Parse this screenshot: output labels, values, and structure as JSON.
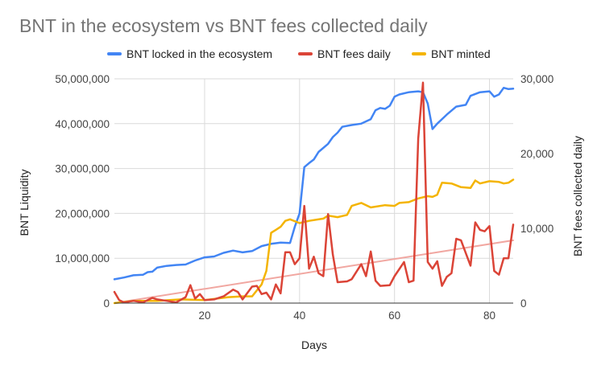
{
  "chart_data": {
    "type": "line",
    "title": "BNT in the ecosystem vs BNT fees collected daily",
    "xlabel": "Days",
    "ylabel": "BNT Liquidity",
    "y2label": "BNT fees collected daily",
    "xlim": [
      1,
      85
    ],
    "ylim": [
      0,
      50000000
    ],
    "y2lim": [
      0,
      30000
    ],
    "x_ticks": [
      20,
      40,
      60,
      80
    ],
    "y_ticks": [
      0,
      10000000,
      20000000,
      30000000,
      40000000,
      50000000
    ],
    "y_tick_labels": [
      "0",
      "10,000,000",
      "20,000,000",
      "30,000,000",
      "40,000,000",
      "50,000,000"
    ],
    "y2_ticks": [
      0,
      10000,
      20000,
      30000
    ],
    "y2_tick_labels": [
      "0",
      "10,000",
      "20,000",
      "30,000"
    ],
    "legend_position": "top",
    "series": [
      {
        "name": "BNT locked in the ecosystem",
        "color": "#4285F4",
        "axis": "left",
        "points": [
          [
            1,
            5300000
          ],
          [
            3,
            5700000
          ],
          [
            5,
            6200000
          ],
          [
            7,
            6300000
          ],
          [
            8,
            6900000
          ],
          [
            9,
            7000000
          ],
          [
            10,
            7900000
          ],
          [
            12,
            8300000
          ],
          [
            14,
            8500000
          ],
          [
            16,
            8600000
          ],
          [
            18,
            9500000
          ],
          [
            20,
            10200000
          ],
          [
            22,
            10400000
          ],
          [
            24,
            11200000
          ],
          [
            26,
            11700000
          ],
          [
            28,
            11300000
          ],
          [
            30,
            11600000
          ],
          [
            32,
            12700000
          ],
          [
            34,
            13200000
          ],
          [
            36,
            13500000
          ],
          [
            38,
            13400000
          ],
          [
            39,
            17000000
          ],
          [
            40,
            20000000
          ],
          [
            41,
            30300000
          ],
          [
            42,
            31200000
          ],
          [
            43,
            32000000
          ],
          [
            44,
            33700000
          ],
          [
            46,
            35500000
          ],
          [
            47,
            37000000
          ],
          [
            48,
            38000000
          ],
          [
            49,
            39300000
          ],
          [
            51,
            39700000
          ],
          [
            53,
            40000000
          ],
          [
            55,
            41000000
          ],
          [
            56,
            43000000
          ],
          [
            57,
            43500000
          ],
          [
            58,
            43300000
          ],
          [
            59,
            44000000
          ],
          [
            60,
            46000000
          ],
          [
            61,
            46500000
          ],
          [
            63,
            47000000
          ],
          [
            65,
            47200000
          ],
          [
            66,
            47000000
          ],
          [
            67,
            44500000
          ],
          [
            68,
            38800000
          ],
          [
            69,
            40000000
          ],
          [
            71,
            42000000
          ],
          [
            73,
            43800000
          ],
          [
            75,
            44200000
          ],
          [
            76,
            46200000
          ],
          [
            78,
            47000000
          ],
          [
            80,
            47200000
          ],
          [
            81,
            46000000
          ],
          [
            82,
            46500000
          ],
          [
            83,
            48000000
          ],
          [
            84,
            47700000
          ],
          [
            85,
            47800000
          ]
        ]
      },
      {
        "name": "BNT fees daily",
        "color": "#DB4437",
        "axis": "right",
        "points": [
          [
            1,
            1500
          ],
          [
            2,
            400
          ],
          [
            3,
            100
          ],
          [
            5,
            300
          ],
          [
            7,
            100
          ],
          [
            9,
            700
          ],
          [
            10,
            500
          ],
          [
            12,
            300
          ],
          [
            14,
            100
          ],
          [
            16,
            800
          ],
          [
            17,
            2400
          ],
          [
            18,
            600
          ],
          [
            19,
            1200
          ],
          [
            20,
            400
          ],
          [
            22,
            500
          ],
          [
            24,
            900
          ],
          [
            26,
            1800
          ],
          [
            27,
            1500
          ],
          [
            28,
            500
          ],
          [
            30,
            2200
          ],
          [
            31,
            2300
          ],
          [
            32,
            1200
          ],
          [
            33,
            1400
          ],
          [
            34,
            500
          ],
          [
            35,
            2500
          ],
          [
            36,
            1300
          ],
          [
            37,
            6800
          ],
          [
            38,
            6800
          ],
          [
            39,
            5200
          ],
          [
            40,
            6000
          ],
          [
            41,
            13000
          ],
          [
            42,
            4600
          ],
          [
            43,
            6200
          ],
          [
            44,
            4000
          ],
          [
            45,
            3600
          ],
          [
            46,
            11900
          ],
          [
            47,
            6500
          ],
          [
            48,
            2800
          ],
          [
            50,
            2900
          ],
          [
            51,
            3200
          ],
          [
            53,
            5200
          ],
          [
            54,
            3600
          ],
          [
            55,
            6900
          ],
          [
            56,
            3000
          ],
          [
            57,
            2300
          ],
          [
            59,
            2400
          ],
          [
            60,
            3600
          ],
          [
            62,
            5500
          ],
          [
            63,
            2800
          ],
          [
            64,
            3000
          ],
          [
            65,
            22000
          ],
          [
            66,
            29500
          ],
          [
            67,
            5500
          ],
          [
            68,
            4600
          ],
          [
            69,
            5600
          ],
          [
            70,
            2300
          ],
          [
            71,
            3500
          ],
          [
            72,
            4000
          ],
          [
            73,
            8600
          ],
          [
            74,
            8400
          ],
          [
            76,
            5000
          ],
          [
            77,
            10800
          ],
          [
            78,
            9800
          ],
          [
            79,
            9600
          ],
          [
            80,
            10300
          ],
          [
            81,
            4300
          ],
          [
            82,
            3800
          ],
          [
            83,
            6000
          ],
          [
            84,
            6000
          ],
          [
            85,
            10500
          ]
        ]
      },
      {
        "name": "BNT minted",
        "color": "#F4B400",
        "axis": "right",
        "points": [
          [
            1,
            0
          ],
          [
            5,
            300
          ],
          [
            10,
            300
          ],
          [
            15,
            500
          ],
          [
            20,
            400
          ],
          [
            25,
            800
          ],
          [
            28,
            900
          ],
          [
            30,
            900
          ],
          [
            32,
            2500
          ],
          [
            33,
            4300
          ],
          [
            34,
            9400
          ],
          [
            35,
            9800
          ],
          [
            36,
            10200
          ],
          [
            37,
            11000
          ],
          [
            38,
            11200
          ],
          [
            40,
            10700
          ],
          [
            42,
            11000
          ],
          [
            45,
            11300
          ],
          [
            46,
            11700
          ],
          [
            48,
            11500
          ],
          [
            50,
            11800
          ],
          [
            51,
            13000
          ],
          [
            53,
            13400
          ],
          [
            55,
            12800
          ],
          [
            58,
            13100
          ],
          [
            60,
            13000
          ],
          [
            61,
            13400
          ],
          [
            63,
            13500
          ],
          [
            65,
            14000
          ],
          [
            67,
            14300
          ],
          [
            68,
            14200
          ],
          [
            69,
            14500
          ],
          [
            70,
            16100
          ],
          [
            72,
            16000
          ],
          [
            74,
            15500
          ],
          [
            76,
            15400
          ],
          [
            77,
            16400
          ],
          [
            78,
            16000
          ],
          [
            80,
            16300
          ],
          [
            82,
            16200
          ],
          [
            83,
            16000
          ],
          [
            84,
            16100
          ],
          [
            85,
            16500
          ]
        ]
      },
      {
        "name": "Trend (BNT fees daily)",
        "color": "#F1A7A1",
        "axis": "right",
        "in_legend": false,
        "points": [
          [
            1,
            0
          ],
          [
            85,
            8400
          ]
        ]
      }
    ]
  }
}
